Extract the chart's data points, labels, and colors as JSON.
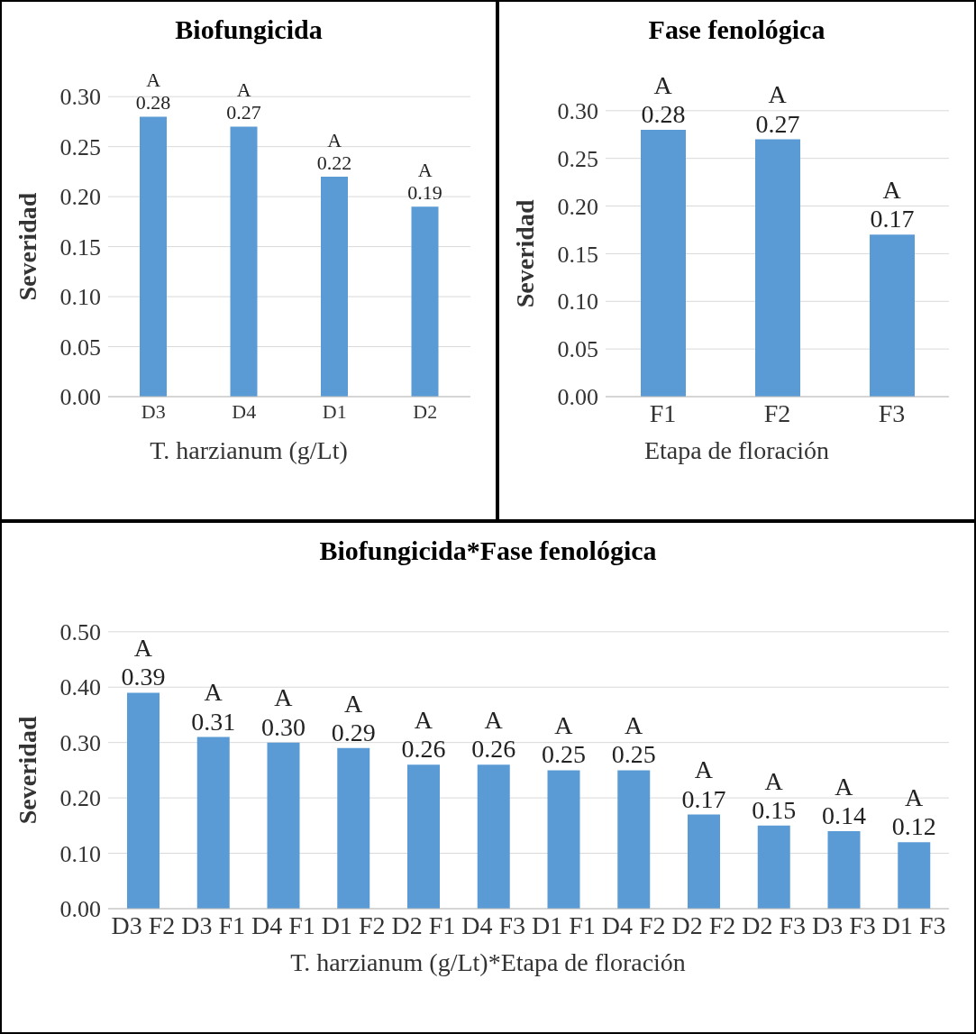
{
  "chart_data": [
    {
      "type": "bar",
      "title": "Biofungicida",
      "xlabel": "T. harzianum (g/Lt)",
      "ylabel": "Severidad",
      "categories": [
        "D3",
        "D4",
        "D1",
        "D2"
      ],
      "values": [
        0.28,
        0.27,
        0.22,
        0.19
      ],
      "value_labels": [
        "0.28",
        "0.27",
        "0.22",
        "0.19"
      ],
      "color": "#5b9bd5",
      "ylim": [
        0,
        0.3
      ],
      "yticks": [
        {
          "value": 0,
          "label": "0.00"
        },
        {
          "value": 0.05,
          "label": "0.05"
        },
        {
          "value": 0.1,
          "label": "0.10"
        },
        {
          "value": 0.15,
          "label": "0.15"
        },
        {
          "value": 0.2,
          "label": "0.20"
        },
        {
          "value": 0.25,
          "label": "0.25"
        },
        {
          "value": 0.3,
          "label": "0.30"
        }
      ],
      "grid": "y",
      "annotations": [
        {
          "text": "A",
          "x": "D3",
          "y": 0.28
        },
        {
          "text": "A",
          "x": "D4",
          "y": 0.27
        },
        {
          "text": "A",
          "x": "D1",
          "y": 0.22
        },
        {
          "text": "A",
          "x": "D2",
          "y": 0.19
        }
      ]
    },
    {
      "type": "bar",
      "title": "Fase fenológica",
      "xlabel": "Etapa de floración",
      "ylabel": "Severidad",
      "categories": [
        "F1",
        "F2",
        "F3"
      ],
      "values": [
        0.28,
        0.27,
        0.17
      ],
      "value_labels": [
        "0.28",
        "0.27",
        "0.17"
      ],
      "color": "#5b9bd5",
      "ylim": [
        0,
        0.3
      ],
      "yticks": [
        {
          "value": 0,
          "label": "0.00"
        },
        {
          "value": 0.05,
          "label": "0.05"
        },
        {
          "value": 0.1,
          "label": "0.10"
        },
        {
          "value": 0.15,
          "label": "0.15"
        },
        {
          "value": 0.2,
          "label": "0.20"
        },
        {
          "value": 0.25,
          "label": "0.25"
        },
        {
          "value": 0.3,
          "label": "0.30"
        }
      ],
      "grid": "y",
      "annotations": [
        {
          "text": "A",
          "x": "F1",
          "y": 0.28
        },
        {
          "text": "A",
          "x": "F2",
          "y": 0.27
        },
        {
          "text": "A",
          "x": "F3",
          "y": 0.17
        }
      ]
    },
    {
      "type": "bar",
      "title": "Biofungicida*Fase fenológica",
      "xlabel": "T. harzianum (g/Lt)*Etapa de floración",
      "ylabel": "Severidad",
      "categories": [
        "D3 F2",
        "D3 F1",
        "D4 F1",
        "D1 F2",
        "D2 F1",
        "D4 F3",
        "D1 F1",
        "D4 F2",
        "D2 F2",
        "D2 F3",
        "D3 F3",
        "D1 F3"
      ],
      "values": [
        0.39,
        0.31,
        0.3,
        0.29,
        0.26,
        0.26,
        0.25,
        0.25,
        0.17,
        0.15,
        0.14,
        0.12
      ],
      "value_labels": [
        "0.39",
        "0.31",
        "0.30",
        "0.29",
        "0.26",
        "0.26",
        "0.25",
        "0.25",
        "0.17",
        "0.15",
        "0.14",
        "0.12"
      ],
      "color": "#5b9bd5",
      "ylim": [
        0,
        0.5
      ],
      "yticks": [
        {
          "value": 0,
          "label": "0.00"
        },
        {
          "value": 0.1,
          "label": "0.10"
        },
        {
          "value": 0.2,
          "label": "0.20"
        },
        {
          "value": 0.3,
          "label": "0.30"
        },
        {
          "value": 0.4,
          "label": "0.40"
        },
        {
          "value": 0.5,
          "label": "0.50"
        }
      ],
      "grid": "y",
      "annotations": [
        {
          "text": "A",
          "x": "D3 F2",
          "y": 0.39
        },
        {
          "text": "A",
          "x": "D3 F1",
          "y": 0.31
        },
        {
          "text": "A",
          "x": "D4 F1",
          "y": 0.3
        },
        {
          "text": "A",
          "x": "D1 F2",
          "y": 0.29
        },
        {
          "text": "A",
          "x": "D2 F1",
          "y": 0.26
        },
        {
          "text": "A",
          "x": "D4 F3",
          "y": 0.26
        },
        {
          "text": "A",
          "x": "D1 F1",
          "y": 0.25
        },
        {
          "text": "A",
          "x": "D4 F2",
          "y": 0.25
        },
        {
          "text": "A",
          "x": "D2 F2",
          "y": 0.17
        },
        {
          "text": "A",
          "x": "D2 F3",
          "y": 0.15
        },
        {
          "text": "A",
          "x": "D3 F3",
          "y": 0.14
        },
        {
          "text": "A",
          "x": "D1 F3",
          "y": 0.12
        }
      ]
    }
  ]
}
